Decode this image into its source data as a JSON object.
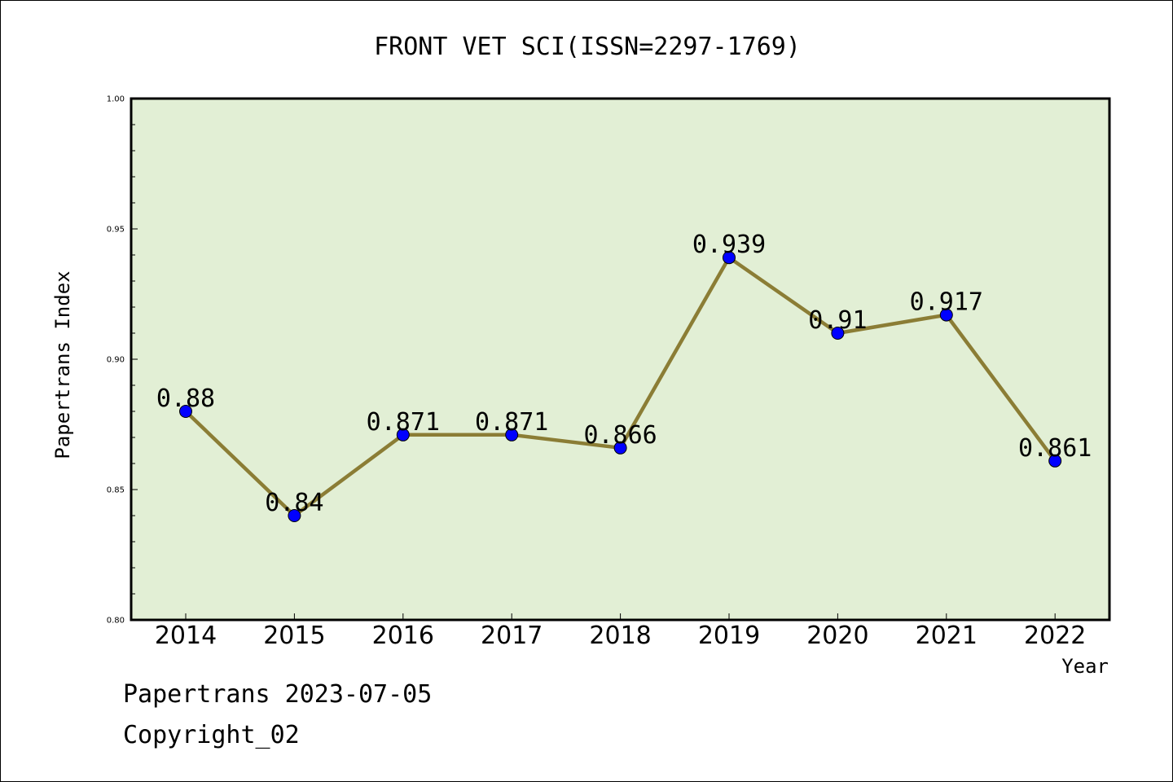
{
  "chart_data": {
    "type": "line",
    "title": "FRONT VET SCI(ISSN=2297-1769)",
    "xlabel": "Year",
    "ylabel": "Papertrans Index",
    "categories": [
      "2014",
      "2015",
      "2016",
      "2017",
      "2018",
      "2019",
      "2020",
      "2021",
      "2022"
    ],
    "values": [
      0.88,
      0.84,
      0.871,
      0.871,
      0.866,
      0.939,
      0.91,
      0.917,
      0.861
    ],
    "data_labels": [
      "0.88",
      "0.84",
      "0.871",
      "0.871",
      "0.866",
      "0.939",
      "0.91",
      "0.917",
      "0.861"
    ],
    "ylim": [
      0.8,
      1.0
    ],
    "yticks": [
      "0.80",
      "0.85",
      "0.90",
      "0.95",
      "1.00"
    ],
    "grid": false,
    "legend": "none",
    "colors": {
      "plot_background": "#e2efd5",
      "line": "#8b7d35",
      "marker": "#0000ff",
      "axes": "#000000"
    }
  },
  "footer": {
    "line1": "Papertrans 2023-07-05",
    "line2": "Copyright_02"
  }
}
